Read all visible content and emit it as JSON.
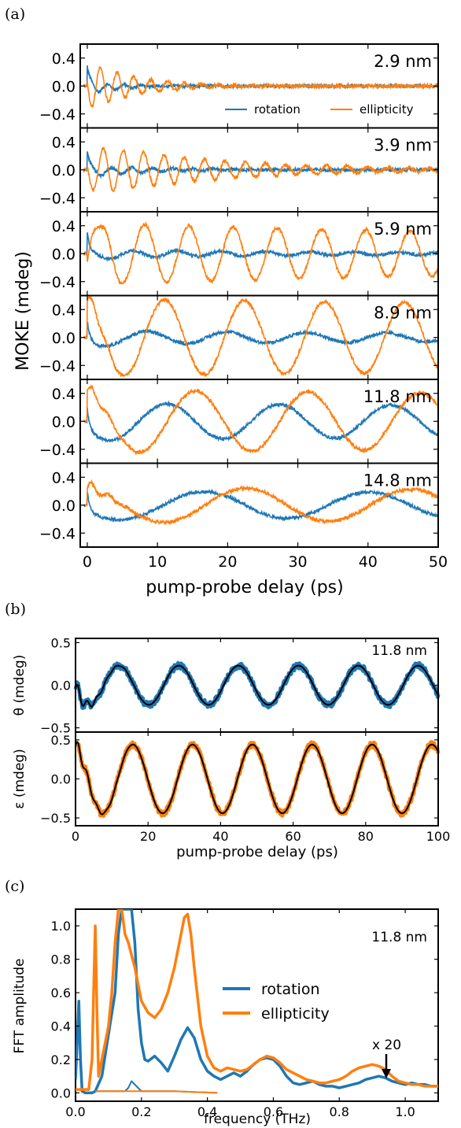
{
  "colors": {
    "rotation": "#1f77b4",
    "ellipticity": "#ff7f0e",
    "fit": "#000000"
  },
  "chart_data": [
    {
      "panel": "(a)",
      "type": "line",
      "xlabel": "pump-probe delay (ps)",
      "ylabel": "MOKE (mdeg)",
      "xlim": [
        -1,
        50
      ],
      "ylim": [
        -0.6,
        0.6
      ],
      "xticks": [
        0,
        10,
        20,
        30,
        40,
        50
      ],
      "yticks": [
        0.4,
        0.0,
        -0.4
      ],
      "ytick_labels": [
        "0.4",
        "0.0",
        "−0.4"
      ],
      "legend": {
        "position": "lower-right",
        "entries": [
          "rotation",
          "ellipticity"
        ]
      },
      "subplots": [
        {
          "label": "2.9 nm",
          "period": 2.4,
          "ell_amp": 0.42,
          "rot_amp": 0.08,
          "ell_decay": 6,
          "rot_decay": 5,
          "ell_phase": 3.0,
          "rot_phase": 0.4
        },
        {
          "label": "3.9 nm",
          "period": 2.9,
          "ell_amp": 0.38,
          "rot_amp": 0.07,
          "ell_decay": 18,
          "rot_decay": 10,
          "ell_phase": 3.0,
          "rot_phase": 0.4
        },
        {
          "label": "5.9 nm",
          "period": 6.3,
          "ell_amp": 0.44,
          "rot_amp": 0.06,
          "ell_decay": 150,
          "rot_decay": 40,
          "ell_phase": -0.3,
          "rot_phase": 1.4
        },
        {
          "label": "8.9 nm",
          "period": 11.4,
          "ell_amp": 0.55,
          "rot_amp": 0.1,
          "ell_decay": 500,
          "rot_decay": 100,
          "ell_phase": 1.8,
          "rot_phase": 3.2
        },
        {
          "label": "11.8 nm",
          "period": 16.0,
          "ell_amp": 0.45,
          "rot_amp": 0.26,
          "ell_decay": 500,
          "rot_decay": 400,
          "ell_phase": 1.8,
          "rot_phase": 3.4
        },
        {
          "label": "14.8 nm",
          "period": 23.5,
          "ell_amp": 0.25,
          "rot_amp": 0.2,
          "ell_decay": 500,
          "rot_decay": 500,
          "ell_phase": 1.8,
          "rot_phase": 3.4
        }
      ],
      "series": [
        {
          "name": "rotation"
        },
        {
          "name": "ellipticity"
        }
      ]
    },
    {
      "panel": "(b)",
      "type": "line",
      "label": "11.8 nm",
      "xlabel": "pump-probe delay (ps)",
      "xlim": [
        0,
        100
      ],
      "xticks": [
        0,
        20,
        40,
        60,
        80,
        100
      ],
      "subplots": [
        {
          "ylabel": "θ (mdeg)",
          "ylim": [
            -0.55,
            0.55
          ],
          "yticks": [
            0.5,
            0.0,
            -0.5
          ],
          "ytick_labels": [
            "0.5",
            "0.0",
            "−0.5"
          ],
          "period": 16.5,
          "amp": 0.23,
          "phase": 3.3
        },
        {
          "ylabel": "ε (mdeg)",
          "ylim": [
            -0.6,
            0.6
          ],
          "yticks": [
            0.5,
            0.0,
            -0.5
          ],
          "ytick_labels": [
            "0.5",
            "0.0",
            "−0.5"
          ],
          "period": 16.5,
          "amp": 0.44,
          "phase": 1.85
        }
      ]
    },
    {
      "panel": "(c)",
      "type": "line",
      "label": "11.8 nm",
      "xlabel": "frequency (THz)",
      "ylabel": "FFT amplitude",
      "xlim": [
        0,
        1.1
      ],
      "ylim": [
        -0.05,
        1.1
      ],
      "xticks": [
        0.0,
        0.2,
        0.4,
        0.6,
        0.8,
        1.0
      ],
      "xtick_labels": [
        "0.0",
        "0.2",
        "0.4",
        "0.6",
        "0.8",
        "1.0"
      ],
      "yticks": [
        0.0,
        0.2,
        0.4,
        0.6,
        0.8,
        1.0
      ],
      "ytick_labels": [
        "0.0",
        "0.2",
        "0.4",
        "0.6",
        "0.8",
        "1.0"
      ],
      "annotation": "x 20",
      "legend": {
        "position": "upper-right",
        "entries": [
          "rotation",
          "ellipticity"
        ]
      },
      "series": [
        {
          "name": "rotation",
          "x": [
            0,
            0.005,
            0.01,
            0.015,
            0.02,
            0.03,
            0.04,
            0.05,
            0.06,
            0.08,
            0.1,
            0.12,
            0.13,
            0.14,
            0.15,
            0.16,
            0.17,
            0.18,
            0.19,
            0.2,
            0.21,
            0.22,
            0.24,
            0.26,
            0.28,
            0.3,
            0.32,
            0.34,
            0.36,
            0.38,
            0.4,
            0.42,
            0.44,
            0.46,
            0.48,
            0.5,
            0.52,
            0.54,
            0.56,
            0.58,
            0.6,
            0.62,
            0.64,
            0.66,
            0.68,
            0.7,
            0.72,
            0.74,
            0.76,
            0.78,
            0.8,
            0.82,
            0.84,
            0.86,
            0.88,
            0.9,
            0.92,
            0.94,
            0.96,
            0.98,
            1.0,
            1.02,
            1.04,
            1.06,
            1.08,
            1.1
          ],
          "y": [
            0.08,
            0.3,
            0.55,
            0.2,
            0.01,
            0.0,
            0.0,
            0.0,
            0.01,
            0.1,
            0.35,
            0.6,
            0.95,
            1.1,
            1.1,
            1.1,
            1.1,
            0.9,
            0.5,
            0.3,
            0.2,
            0.19,
            0.22,
            0.18,
            0.13,
            0.22,
            0.32,
            0.39,
            0.33,
            0.2,
            0.13,
            0.1,
            0.08,
            0.1,
            0.12,
            0.1,
            0.13,
            0.17,
            0.2,
            0.21,
            0.2,
            0.16,
            0.1,
            0.06,
            0.05,
            0.06,
            0.07,
            0.05,
            0.04,
            0.04,
            0.03,
            0.04,
            0.05,
            0.06,
            0.08,
            0.09,
            0.1,
            0.09,
            0.07,
            0.06,
            0.05,
            0.06,
            0.05,
            0.05,
            0.04,
            0.04
          ]
        },
        {
          "name": "ellipticity",
          "x": [
            0,
            0.01,
            0.02,
            0.03,
            0.04,
            0.05,
            0.055,
            0.06,
            0.065,
            0.07,
            0.08,
            0.1,
            0.11,
            0.12,
            0.13,
            0.14,
            0.15,
            0.16,
            0.18,
            0.2,
            0.22,
            0.24,
            0.26,
            0.28,
            0.3,
            0.32,
            0.33,
            0.34,
            0.35,
            0.36,
            0.38,
            0.4,
            0.42,
            0.44,
            0.46,
            0.48,
            0.5,
            0.52,
            0.54,
            0.56,
            0.58,
            0.6,
            0.62,
            0.64,
            0.66,
            0.68,
            0.7,
            0.72,
            0.74,
            0.76,
            0.78,
            0.8,
            0.82,
            0.84,
            0.86,
            0.88,
            0.9,
            0.92,
            0.94,
            0.96,
            0.98,
            1.0,
            1.02,
            1.04,
            1.06,
            1.08,
            1.1
          ],
          "y": [
            0.02,
            0.02,
            0.02,
            0.02,
            0.02,
            0.2,
            0.6,
            1.0,
            0.5,
            0.1,
            0.2,
            0.4,
            0.6,
            0.9,
            1.1,
            1.1,
            0.95,
            0.9,
            0.75,
            0.55,
            0.48,
            0.45,
            0.5,
            0.6,
            0.75,
            0.95,
            1.05,
            1.07,
            0.95,
            0.75,
            0.4,
            0.22,
            0.15,
            0.13,
            0.15,
            0.14,
            0.13,
            0.14,
            0.17,
            0.2,
            0.22,
            0.21,
            0.18,
            0.14,
            0.12,
            0.1,
            0.08,
            0.07,
            0.06,
            0.06,
            0.07,
            0.08,
            0.1,
            0.13,
            0.15,
            0.16,
            0.17,
            0.16,
            0.14,
            0.1,
            0.07,
            0.06,
            0.05,
            0.05,
            0.04,
            0.04,
            0.04
          ]
        },
        {
          "name": "rotation x 20",
          "x": [
            0.06,
            0.1,
            0.15,
            0.16,
            0.17,
            0.2,
            0.3,
            0.43
          ],
          "y": [
            0.01,
            0.01,
            0.01,
            0.03,
            0.07,
            0.01,
            0.01,
            0.0
          ]
        },
        {
          "name": "ellipticity x 20",
          "x": [
            0.06,
            0.1,
            0.15,
            0.2,
            0.3,
            0.43
          ],
          "y": [
            0.01,
            0.01,
            0.01,
            0.01,
            0.01,
            0.0
          ]
        }
      ]
    }
  ]
}
